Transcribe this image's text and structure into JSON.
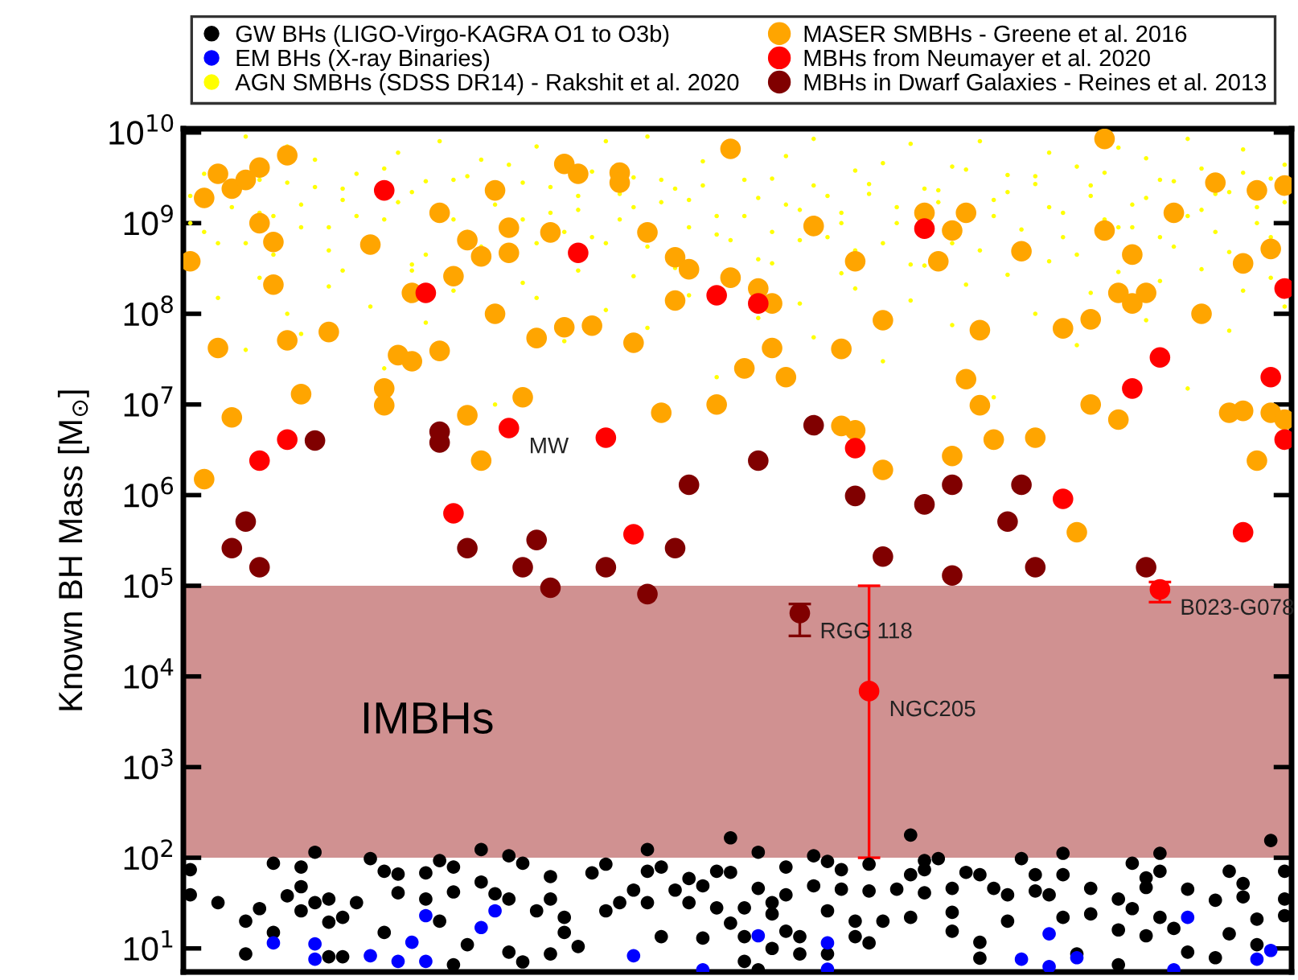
{
  "chart_data": {
    "type": "scatter",
    "ylabel": "Known BH Mass [M$_{⊙}$]",
    "log": "y",
    "marker": "circle",
    "legend": "top",
    "tick_labels": "y",
    "ylim": [
      5.5,
      11000000000
    ],
    "yticks": [
      {
        "value": 10,
        "label": "10$^{1}$"
      },
      {
        "value": 100,
        "label": "10$^{2}$"
      },
      {
        "value": 1000,
        "label": "10$^{3}$"
      },
      {
        "value": 10000,
        "label": "10$^{4}$"
      },
      {
        "value": 100000,
        "label": "10$^{5}$"
      },
      {
        "value": 1000000,
        "label": "10$^{6}$"
      },
      {
        "value": 10000000,
        "label": "10$^{7}$"
      },
      {
        "value": 100000000,
        "label": "10$^{8}$"
      },
      {
        "value": 1000000000,
        "label": "10$^{9}$"
      },
      {
        "value": 10000000000,
        "label": "10$^{10}$"
      }
    ],
    "bands": [
      {
        "axis": "y",
        "from": 100,
        "to": 100000,
        "label": "IMBHs",
        "color": "#d09191"
      }
    ],
    "categories": [
      null,
      null,
      null,
      null,
      null,
      null,
      null,
      null,
      null,
      null,
      null,
      null,
      null,
      null,
      null,
      null,
      null,
      null,
      null,
      null,
      null,
      null,
      null,
      null,
      null,
      null,
      null,
      null,
      null,
      null,
      null,
      null,
      null,
      null,
      null,
      null,
      null,
      null,
      null,
      null,
      null,
      null,
      null,
      null,
      null,
      null,
      null,
      null,
      null,
      null,
      null,
      null,
      null,
      null,
      null,
      null,
      null,
      null,
      null,
      null,
      null,
      null,
      null,
      null,
      null,
      null,
      null,
      null,
      null,
      null,
      null,
      null,
      null,
      null,
      null,
      null,
      null,
      null,
      null,
      null
    ],
    "series": [
      {
        "name": "GW BHs (LIGO-Virgo-KAGRA O1 to O3b)",
        "color": "#000000",
        "values": [
          74,
          null,
          32,
          null,
          20,
          27.5,
          87,
          38,
          26,
          32,
          8.1,
          22,
          32,
          98,
          71,
          66,
          null,
          68,
          93,
          79,
          11,
          123,
          40,
          105,
          87,
          26,
          62,
          15,
          10.5,
          68,
          26,
          32,
          44,
          123,
          79,
          44,
          59,
          49,
          28,
          166,
          28,
          46,
          32,
          79,
          8.7,
          105,
          91,
          74,
          20,
          85,
          20,
          45,
          65,
          93,
          98,
          15.5,
          69,
          11.7,
          46,
          39,
          98,
          65,
          39,
          65,
          8.7,
          46,
          null,
          35,
          87,
          60,
          112,
          16.6,
          45,
          null,
          34,
          71,
          52,
          21,
          155,
          35
        ]
      },
      {
        "color": "#000000",
        "values": [
          39,
          null,
          null,
          null,
          8.7,
          null,
          15,
          null,
          79,
          115,
          19.5,
          8.1,
          null,
          null,
          15,
          41,
          null,
          35,
          20,
          6.6,
          null,
          54,
          null,
          9.1,
          7.1,
          null,
          8.7,
          22,
          null,
          null,
          85,
          null,
          null,
          32,
          13.5,
          null,
          32,
          13,
          71,
          69,
          13.5,
          5.8,
          24,
          15.5,
          13.5,
          49,
          26,
          45,
          13.5,
          43,
          null,
          null,
          178,
          41,
          null,
          25,
          null,
          7.8,
          null,
          20,
          null,
          43,
          null,
          112,
          null,
          24,
          null,
          6.6,
          27.5,
          13.8,
          71,
          null,
          9.1,
          null,
          7.9,
          14.5,
          37,
          11,
          null,
          23
        ]
      },
      {
        "color": "#000000",
        "values": [
          null,
          null,
          null,
          null,
          null,
          null,
          null,
          null,
          48,
          null,
          35,
          null,
          null,
          null,
          null,
          null,
          null,
          null,
          null,
          42,
          null,
          null,
          null,
          35,
          null,
          null,
          35,
          null,
          null,
          null,
          null,
          null,
          null,
          71,
          null,
          null,
          null,
          null,
          null,
          19,
          7.2,
          115,
          10,
          39,
          null,
          null,
          8.7,
          null,
          null,
          11.5,
          null,
          null,
          22,
          74,
          null,
          46,
          null,
          65,
          null,
          null,
          null,
          null,
          null,
          22,
          null,
          null,
          null,
          16,
          null,
          47,
          22,
          null,
          null,
          null,
          null,
          null,
          null,
          null,
          null,
          71
        ]
      },
      {
        "name": "EM BHs (X-ray Binaries)",
        "color": "#0000ff",
        "values": [
          null,
          null,
          null,
          null,
          null,
          null,
          11.5,
          null,
          null,
          7.6,
          null,
          null,
          null,
          8.3,
          null,
          7.2,
          11.7,
          7.2,
          null,
          null,
          null,
          17,
          26,
          null,
          null,
          null,
          null,
          null,
          null,
          null,
          null,
          null,
          8.3,
          null,
          null,
          null,
          null,
          5.8,
          null,
          null,
          null,
          13.8,
          null,
          null,
          null,
          null,
          11.5,
          null,
          null,
          null,
          null,
          null,
          null,
          null,
          null,
          null,
          null,
          null,
          null,
          null,
          7.6,
          null,
          6.3,
          null,
          7.9,
          null,
          null,
          null,
          null,
          null,
          null,
          5.8,
          22,
          null,
          null,
          null,
          null,
          7.6,
          9.5,
          null
        ]
      },
      {
        "color": "#0000ff",
        "values": [
          null,
          null,
          null,
          null,
          null,
          null,
          null,
          null,
          null,
          11.2,
          null,
          null,
          null,
          null,
          null,
          null,
          null,
          23,
          null,
          null,
          null,
          null,
          null,
          null,
          null,
          null,
          null,
          null,
          null,
          null,
          null,
          null,
          null,
          null,
          null,
          null,
          null,
          null,
          null,
          null,
          null,
          null,
          null,
          null,
          null,
          null,
          5.9,
          null,
          null,
          null,
          null,
          null,
          null,
          null,
          null,
          null,
          null,
          null,
          null,
          null,
          null,
          null,
          14.5,
          null,
          null,
          null,
          null,
          null,
          null,
          null,
          null,
          null,
          null,
          null,
          null,
          null,
          null,
          null,
          null,
          null
        ]
      },
      {
        "name": "AGN SMBHs (SDSS DR14) - Rakshit et al. 2020",
        "color": "#ffff00",
        "values": [
          2000000000.0,
          800000000.0,
          null,
          1500000000.0,
          600000000.0,
          3000000000.0,
          1200000000.0,
          7000000000.0,
          900000000.0,
          2500000000.0,
          500000000.0,
          1800000000.0,
          3500000000.0,
          null,
          1100000000.0,
          6000000000.0,
          2200000000.0,
          450000000.0,
          null,
          3000000000.0,
          800000000.0,
          5000000000.0,
          1600000000.0,
          null,
          2800000000.0,
          600000000.0,
          1300000000.0,
          null,
          2000000000.0,
          700000000.0,
          8000000000.0,
          1100000000.0,
          3200000000.0,
          550000000.0,
          1700000000.0,
          2400000000.0,
          900000000.0,
          4800000000.0,
          1200000000.0,
          650000000.0,
          3000000000.0,
          1900000000.0,
          800000000.0,
          5500000000.0,
          1400000000.0,
          2600000000.0,
          700000000.0,
          1000000000.0,
          3800000000.0,
          2100000000.0,
          600000000.0,
          1500000000.0,
          7500000000.0,
          null,
          2300000000.0,
          4200000000.0,
          null,
          500000000.0,
          1800000000.0,
          3400000000.0,
          850000000.0,
          2700000000.0,
          6000000000.0,
          1300000000.0,
          450000000.0,
          2000000000.0,
          3600000000.0,
          900000000.0,
          1600000000.0,
          5200000000.0,
          700000000.0,
          2900000000.0,
          1200000000.0,
          4000000000.0,
          800000000.0,
          2200000000.0,
          6500000000.0,
          1000000000.0,
          3100000000.0,
          1700000000.0
        ]
      },
      {
        "color": "#ffff00",
        "values": [
          1000000000.0,
          3500000000.0,
          600000000.0,
          null,
          9000000000.0,
          1300000000.0,
          450000000.0,
          2800000000.0,
          1600000000.0,
          5000000000.0,
          900000000.0,
          2400000000.0,
          1200000000.0,
          null,
          4000000000.0,
          1700000000.0,
          300000000.0,
          2900000000.0,
          8000000000.0,
          1100000000.0,
          3300000000.0,
          550000000.0,
          null,
          4400000000.0,
          1100000000.0,
          7000000000.0,
          2500000000.0,
          800000000.0,
          1400000000.0,
          3700000000.0,
          600000000.0,
          2100000000.0,
          1500000000.0,
          9000000000.0,
          3000000000.0,
          null,
          1800000000.0,
          2600000000.0,
          750000000.0,
          null,
          1200000000.0,
          400000000.0,
          3100000000.0,
          1600000000.0,
          650000000.0,
          8500000000.0,
          2000000000.0,
          1300000000.0,
          500000000.0,
          2700000000.0,
          4600000000.0,
          1000000000.0,
          350000000.0,
          2400000000.0,
          1700000000.0,
          600000000.0,
          3900000000.0,
          8000000000.0,
          1200000000.0,
          2200000000.0,
          null,
          3300000000.0,
          1500000000.0,
          700000000.0,
          4200000000.0,
          2600000000.0,
          1100000000.0,
          6800000000.0,
          900000000.0,
          1900000000.0,
          3000000000.0,
          550000000.0,
          8500000000.0,
          1400000000.0,
          2100000000.0,
          480000000.0,
          3600000000.0,
          1500000000.0,
          700000000.0,
          4400000000.0
        ]
      },
      {
        "color": "#ffff00",
        "values": [
          null,
          null,
          150000000.0,
          null,
          40000000.0,
          250000000.0,
          null,
          100000000.0,
          60000000.0,
          null,
          200000000.0,
          300000000.0,
          null,
          120000000.0,
          25000000.0,
          null,
          350000000.0,
          80000000.0,
          null,
          180000000.0,
          null,
          null,
          10000000.0,
          null,
          220000000.0,
          150000000.0,
          null,
          50000000.0,
          300000000.0,
          null,
          110000000.0,
          null,
          260000000.0,
          70000000.0,
          null,
          320000000.0,
          160000000.0,
          null,
          20000000.0,
          null,
          null,
          90000000.0,
          360000000.0,
          null,
          130000000.0,
          55000000.0,
          null,
          280000000.0,
          190000000.0,
          null,
          30000000.0,
          null,
          140000000.0,
          340000000.0,
          null,
          75000000.0,
          210000000.0,
          null,
          12000000.0,
          270000000.0,
          null,
          100000000.0,
          380000000.0,
          null,
          45000000.0,
          170000000.0,
          null,
          290000000.0,
          null,
          85000000.0,
          230000000.0,
          null,
          15000000.0,
          310000000.0,
          null,
          65000000.0,
          180000000.0,
          null,
          250000000.0,
          120000000.0
        ]
      },
      {
        "name": "MASER SMBHs - Greene et al. 2016",
        "color": "#ffa500",
        "values": [
          380000000.0,
          1500000.0,
          3500000000.0,
          2400000000.0,
          3000000000.0,
          1000000000.0,
          620000000.0,
          5600000000.0,
          13000000.0,
          null,
          63000000.0,
          null,
          null,
          580000000.0,
          15000000.0,
          35000000.0,
          170000000.0,
          null,
          39000000.0,
          260000000.0,
          650000000.0,
          430000000.0,
          2300000000.0,
          890000000.0,
          12000000.0,
          54000000.0,
          790000000.0,
          4500000000.0,
          3500000000.0,
          74000000.0,
          null,
          3600000000.0,
          48000000.0,
          790000000.0,
          8100000.0,
          420000000.0,
          310000000.0,
          null,
          10000000.0,
          250000000.0,
          25000000.0,
          190000000.0,
          42000000.0,
          20000000.0,
          null,
          930000000.0,
          null,
          41000000.0,
          5200000.0,
          null,
          1900000.0,
          null,
          null,
          1300000000.0,
          380000000.0,
          830000000.0,
          19000000.0,
          9800000.0,
          4100000.0,
          null,
          490000000.0,
          4300000.0,
          null,
          69000000.0,
          390000.0,
          87000000.0,
          8500000000.0,
          170000000.0,
          130000000.0,
          170000000.0,
          null,
          1300000000.0,
          null,
          100000000.0,
          2800000000.0,
          8100000.0,
          360000000.0,
          2300000000.0,
          520000000.0,
          2600000000.0
        ]
      },
      {
        "color": "#ffa500",
        "values": [
          null,
          1900000000.0,
          42000000.0,
          7200000.0,
          null,
          4100000000.0,
          210000000.0,
          51000000.0,
          null,
          null,
          null,
          null,
          null,
          null,
          9800000.0,
          null,
          30000000.0,
          null,
          1300000000.0,
          null,
          7600000.0,
          2400000.0,
          100000000.0,
          470000000.0,
          null,
          null,
          null,
          71000000.0,
          null,
          null,
          null,
          2800000000.0,
          null,
          null,
          null,
          140000000.0,
          null,
          null,
          null,
          6600000000.0,
          null,
          null,
          130000000.0,
          null,
          null,
          null,
          null,
          5800000.0,
          380000000.0,
          null,
          85000000.0,
          null,
          null,
          null,
          null,
          2700000.0,
          1300000000.0,
          66000000.0,
          null,
          null,
          null,
          null,
          null,
          null,
          null,
          10000000.0,
          830000000.0,
          6800000.0,
          450000000.0,
          null,
          null,
          null,
          null,
          null,
          null,
          null,
          8500000.0,
          2400000.0,
          8100000.0,
          6800000.0
        ]
      },
      {
        "name": "MBHs from Neumayer et al. 2020",
        "color": "#ff0000",
        "values": [
          null,
          null,
          null,
          null,
          null,
          2400000.0,
          null,
          4100000.0,
          null,
          null,
          null,
          null,
          null,
          null,
          2300000000.0,
          null,
          null,
          170000000.0,
          null,
          630000.0,
          null,
          null,
          null,
          5500000.0,
          null,
          null,
          null,
          null,
          470000000.0,
          null,
          4300000.0,
          null,
          370000.0,
          null,
          null,
          null,
          null,
          null,
          160000000.0,
          null,
          null,
          130000000.0,
          null,
          null,
          null,
          null,
          null,
          null,
          3300000.0,
          6900,
          null,
          null,
          null,
          870000000.0,
          null,
          null,
          null,
          null,
          null,
          null,
          null,
          null,
          null,
          910000.0,
          null,
          null,
          null,
          null,
          15000000.0,
          null,
          91000.0,
          null,
          null,
          null,
          null,
          null,
          390000.0,
          null,
          20000000.0,
          190000000.0
        ],
        "errors": [
          null,
          null,
          null,
          null,
          null,
          null,
          null,
          null,
          null,
          null,
          null,
          null,
          null,
          null,
          null,
          null,
          null,
          null,
          null,
          null,
          null,
          null,
          null,
          null,
          null,
          null,
          null,
          null,
          null,
          null,
          null,
          null,
          null,
          null,
          null,
          null,
          null,
          null,
          null,
          null,
          null,
          null,
          null,
          null,
          null,
          null,
          null,
          null,
          null,
          [
            100,
            100000
          ],
          null,
          null,
          null,
          null,
          null,
          null,
          null,
          null,
          null,
          null,
          null,
          null,
          null,
          null,
          null,
          null,
          null,
          null,
          null,
          null,
          [
            66000,
            110000
          ],
          null,
          null,
          null,
          null,
          null,
          null,
          null,
          null,
          null
        ],
        "value_labels": [
          null,
          null,
          null,
          null,
          null,
          null,
          null,
          null,
          null,
          null,
          null,
          null,
          null,
          null,
          null,
          null,
          null,
          null,
          null,
          null,
          null,
          null,
          null,
          "MW",
          null,
          null,
          null,
          null,
          null,
          null,
          null,
          null,
          null,
          null,
          null,
          null,
          null,
          null,
          null,
          null,
          null,
          null,
          null,
          null,
          null,
          null,
          null,
          null,
          null,
          "NGC205",
          null,
          null,
          null,
          null,
          null,
          null,
          null,
          null,
          null,
          null,
          null,
          null,
          null,
          null,
          null,
          null,
          null,
          null,
          null,
          null,
          "B023-G078",
          null,
          null,
          null,
          null,
          null,
          null,
          null,
          null,
          null
        ]
      },
      {
        "color": "#ff0000",
        "values": [
          null,
          null,
          null,
          null,
          null,
          null,
          null,
          null,
          null,
          null,
          null,
          null,
          null,
          null,
          null,
          null,
          null,
          null,
          null,
          null,
          null,
          null,
          null,
          null,
          null,
          null,
          null,
          null,
          null,
          null,
          null,
          null,
          null,
          null,
          null,
          null,
          null,
          null,
          null,
          null,
          null,
          null,
          null,
          null,
          null,
          null,
          null,
          null,
          null,
          null,
          null,
          null,
          null,
          null,
          null,
          null,
          null,
          null,
          null,
          null,
          null,
          null,
          null,
          null,
          null,
          null,
          null,
          null,
          null,
          null,
          33000000.0,
          null,
          null,
          null,
          null,
          null,
          null,
          null,
          null,
          4100000.0
        ]
      },
      {
        "name": "MBHs in Dwarf Galaxies - Reines et al. 2013",
        "color": "#800000",
        "values": [
          null,
          null,
          null,
          260000.0,
          510000.0,
          160000.0,
          null,
          null,
          null,
          4000000.0,
          null,
          null,
          null,
          null,
          null,
          null,
          null,
          null,
          5000000.0,
          null,
          260000.0,
          null,
          null,
          null,
          160000.0,
          320000.0,
          95000.0,
          null,
          null,
          null,
          160000.0,
          null,
          null,
          81000.0,
          null,
          260000.0,
          1300000.0,
          null,
          null,
          null,
          null,
          2400000.0,
          null,
          null,
          50000.0,
          5900000.0,
          null,
          null,
          980000.0,
          null,
          210000.0,
          null,
          null,
          790000.0,
          null,
          1300000.0,
          null,
          null,
          null,
          510000.0,
          1300000.0,
          160000.0,
          null,
          null,
          null,
          null,
          null,
          null,
          null,
          160000.0,
          null,
          null,
          null,
          null,
          null,
          null,
          null,
          null,
          null,
          null
        ],
        "errors": [
          null,
          null,
          null,
          null,
          null,
          null,
          null,
          null,
          null,
          null,
          null,
          null,
          null,
          null,
          null,
          null,
          null,
          null,
          null,
          null,
          null,
          null,
          null,
          null,
          null,
          null,
          null,
          null,
          null,
          null,
          null,
          null,
          null,
          null,
          null,
          null,
          null,
          null,
          null,
          null,
          null,
          null,
          null,
          null,
          [
            28000,
            63000
          ],
          null,
          null,
          null,
          null,
          null,
          null,
          null,
          null,
          null,
          null,
          null,
          null,
          null,
          null,
          null,
          null,
          null,
          null,
          null,
          null,
          null,
          null,
          null,
          null,
          null,
          null,
          null,
          null,
          null,
          null,
          null,
          null,
          null,
          null,
          null
        ],
        "value_labels": [
          null,
          null,
          null,
          null,
          null,
          null,
          null,
          null,
          null,
          null,
          null,
          null,
          null,
          null,
          null,
          null,
          null,
          null,
          null,
          null,
          null,
          null,
          null,
          null,
          null,
          null,
          null,
          null,
          null,
          null,
          null,
          null,
          null,
          null,
          null,
          null,
          null,
          null,
          null,
          null,
          null,
          null,
          null,
          null,
          "RGG 118",
          null,
          null,
          null,
          null,
          null,
          null,
          null,
          null,
          null,
          null,
          null,
          null,
          null,
          null,
          null,
          null,
          null,
          null,
          null,
          null,
          null,
          null,
          null,
          null,
          null,
          null,
          null,
          null,
          null,
          null,
          null,
          null,
          null,
          null,
          null
        ]
      },
      {
        "color": "#800000",
        "values": [
          null,
          null,
          null,
          null,
          null,
          null,
          null,
          null,
          null,
          null,
          null,
          null,
          null,
          null,
          null,
          null,
          null,
          null,
          3800000.0,
          null,
          null,
          null,
          null,
          null,
          null,
          null,
          null,
          null,
          null,
          null,
          null,
          null,
          null,
          null,
          null,
          null,
          null,
          null,
          null,
          null,
          null,
          null,
          null,
          null,
          null,
          null,
          null,
          null,
          null,
          null,
          null,
          null,
          null,
          null,
          null,
          130000.0,
          null,
          null,
          null,
          null,
          null,
          null,
          null,
          null,
          null,
          null,
          null,
          null,
          null,
          null,
          null,
          null,
          null,
          null,
          null,
          null,
          null,
          null,
          null,
          null
        ]
      }
    ]
  }
}
